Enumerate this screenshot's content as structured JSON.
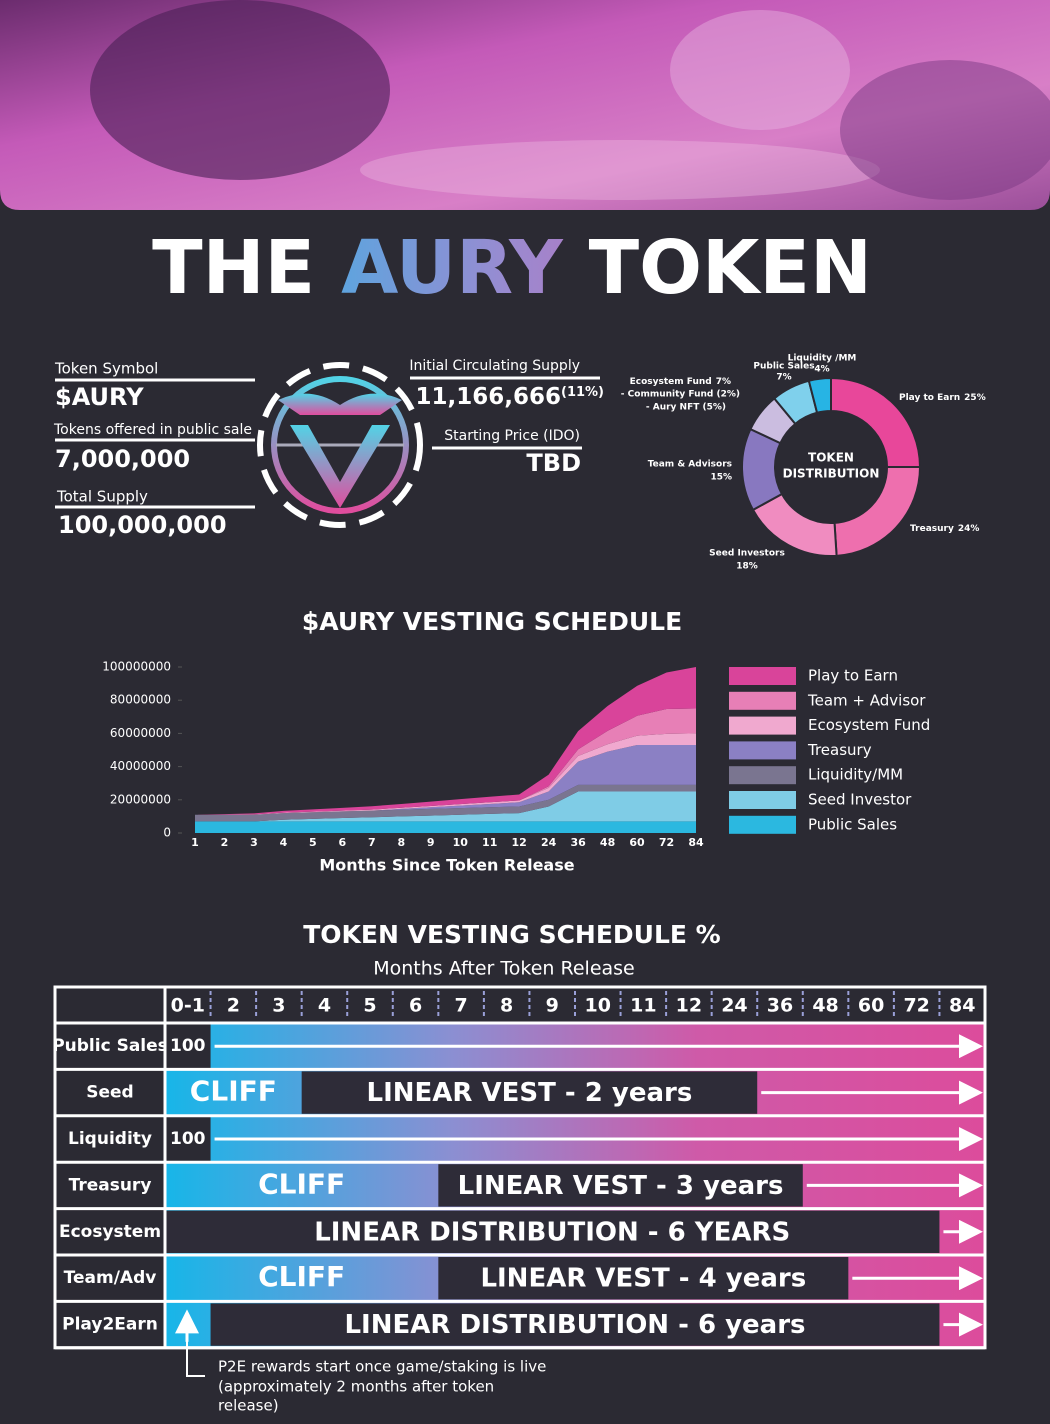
{
  "header": {
    "title": [
      "THE",
      "AURY",
      "TOKEN"
    ]
  },
  "info": {
    "token_symbol_label": "Token Symbol",
    "token_symbol": "$AURY",
    "public_sale_label": "Tokens offered in public sale",
    "public_sale": "7,000,000",
    "total_supply_label": "Total Supply",
    "total_supply": "100,000,000",
    "circulating_label": "Initial Circulating Supply",
    "circulating": "11,166,666",
    "circulating_pct": "(11%)",
    "price_label": "Starting Price (IDO)",
    "price": "TBD"
  },
  "chart_data": [
    {
      "type": "donut",
      "center_label": [
        "TOKEN",
        "DISTRIBUTION"
      ],
      "categories": [
        "Play to Earn",
        "Treasury",
        "Seed Investors",
        "Team & Advisors",
        "Ecosystem Fund",
        "Public Sales",
        "Liquidity /MM"
      ],
      "values": [
        25,
        24,
        18,
        15,
        7,
        7,
        4
      ],
      "value_labels": [
        "25%",
        "24%",
        "18%",
        "15%",
        "7%",
        "7%",
        "4%"
      ],
      "colors": [
        "#e8479a",
        "#ee6fae",
        "#f08cc0",
        "#8878c0",
        "#cbbde0",
        "#7fd0ec",
        "#27b4e4"
      ],
      "notes": [
        "- Community Fund (2%)",
        "- Aury NFT (5%)"
      ]
    },
    {
      "type": "stacked-area",
      "title": "$AURY VESTING SCHEDULE",
      "x_label": "Months Since Token Release",
      "categories": [
        "1",
        "2",
        "3",
        "4",
        "5",
        "6",
        "7",
        "8",
        "9",
        "10",
        "11",
        "12",
        "24",
        "36",
        "48",
        "60",
        "72",
        "84"
      ],
      "ylim": [
        0,
        100000000
      ],
      "yticks": [
        0,
        20000000,
        40000000,
        60000000,
        80000000,
        100000000
      ],
      "series": [
        {
          "name": "Public Sales",
          "color": "#2bb8e0",
          "values": [
            7000000,
            7000000,
            7000000,
            7000000,
            7000000,
            7000000,
            7000000,
            7000000,
            7000000,
            7000000,
            7000000,
            7000000,
            7000000,
            7000000,
            7000000,
            7000000,
            7000000,
            7000000
          ]
        },
        {
          "name": "Seed Investor",
          "color": "#7fcce6",
          "values": [
            0,
            0,
            0,
            1000000,
            1500000,
            2000000,
            2500000,
            3000000,
            3500000,
            4000000,
            4500000,
            5000000,
            9000000,
            18000000,
            18000000,
            18000000,
            18000000,
            18000000
          ]
        },
        {
          "name": "Liquidity/MM",
          "color": "#7a7590",
          "values": [
            4000000,
            4000000,
            4000000,
            4000000,
            4000000,
            4000000,
            4000000,
            4000000,
            4000000,
            4000000,
            4000000,
            4000000,
            4000000,
            4000000,
            4000000,
            4000000,
            4000000,
            4000000
          ]
        },
        {
          "name": "Treasury",
          "color": "#8b80c4",
          "values": [
            0,
            0,
            0,
            0,
            0,
            0,
            0,
            500000,
            1000000,
            1500000,
            2000000,
            2500000,
            5000000,
            14000000,
            20000000,
            24000000,
            24000000,
            24000000
          ]
        },
        {
          "name": "Ecosystem Fund",
          "color": "#f0a9cf",
          "values": [
            0,
            100000,
            200000,
            300000,
            400000,
            500000,
            600000,
            700000,
            800000,
            900000,
            1000000,
            1100000,
            2200000,
            3400000,
            4500000,
            5600000,
            6700000,
            7000000
          ]
        },
        {
          "name": "Team + Advisor",
          "color": "#e77fb6",
          "values": [
            0,
            0,
            0,
            0,
            0,
            0,
            0,
            0,
            0,
            0,
            0,
            0,
            1000000,
            4000000,
            8000000,
            12000000,
            15000000,
            15000000
          ]
        },
        {
          "name": "Play to Earn",
          "color": "#d9449a",
          "values": [
            0,
            300000,
            600000,
            1000000,
            1300000,
            1600000,
            2000000,
            2300000,
            2600000,
            3000000,
            3300000,
            3600000,
            7000000,
            11000000,
            15000000,
            18000000,
            22000000,
            25000000
          ]
        }
      ]
    }
  ],
  "table": {
    "title": "TOKEN VESTING SCHEDULE %",
    "subtitle": "Months After Token Release",
    "columns": [
      "0-1",
      "2",
      "3",
      "4",
      "5",
      "6",
      "7",
      "8",
      "9",
      "10",
      "11",
      "12",
      "24",
      "36",
      "48",
      "60",
      "72",
      "84"
    ],
    "rows": [
      {
        "label": "Public Sales",
        "start": "100"
      },
      {
        "label": "Seed",
        "cliff": "CLIFF",
        "vest": "LINEAR VEST - 2 years"
      },
      {
        "label": "Liquidity",
        "start": "100"
      },
      {
        "label": "Treasury",
        "cliff": "CLIFF",
        "vest": "LINEAR VEST - 3 years"
      },
      {
        "label": "Ecosystem",
        "vest": "LINEAR DISTRIBUTION - 6 YEARS"
      },
      {
        "label": "Team/Adv",
        "cliff": "CLIFF",
        "vest": "LINEAR VEST - 4 years"
      },
      {
        "label": "Play2Earn",
        "vest": "LINEAR DISTRIBUTION - 6 years"
      }
    ],
    "note": [
      "P2E rewards start once game/staking is live",
      "(approximately 2 months after token",
      "release)"
    ]
  }
}
